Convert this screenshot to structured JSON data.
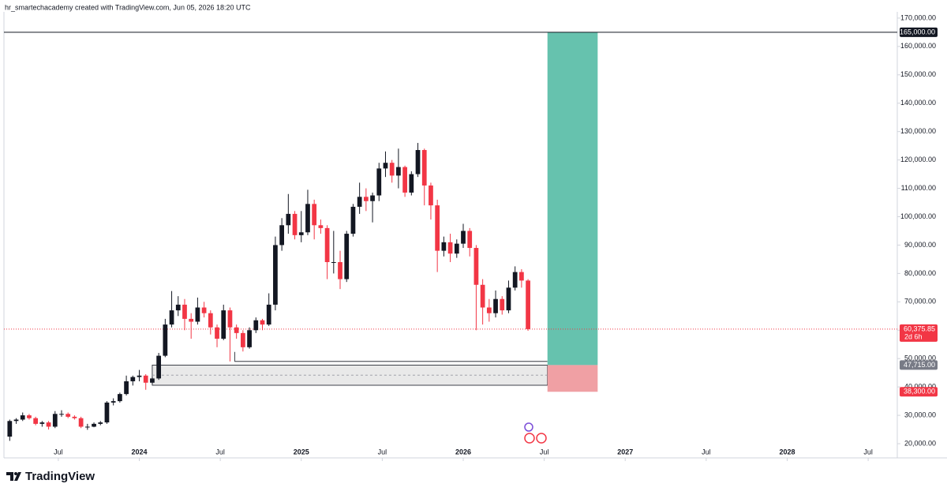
{
  "header": "hr_smartechacademy created with TradingView.com, Jun 05, 2026 18:20 UTC",
  "brand": "TradingView",
  "chart_data": {
    "type": "candlestick",
    "x": [
      2023.2,
      2023.24,
      2023.28,
      2023.32,
      2023.36,
      2023.4,
      2023.44,
      2023.48,
      2023.52,
      2023.56,
      2023.6,
      2023.64,
      2023.68,
      2023.72,
      2023.76,
      2023.8,
      2023.84,
      2023.88,
      2023.92,
      2023.96,
      2024.0,
      2024.04,
      2024.08,
      2024.12,
      2024.16,
      2024.2,
      2024.24,
      2024.28,
      2024.32,
      2024.36,
      2024.4,
      2024.44,
      2024.48,
      2024.52,
      2024.56,
      2024.6,
      2024.64,
      2024.68,
      2024.72,
      2024.76,
      2024.8,
      2024.84,
      2024.88,
      2024.92,
      2024.96,
      2025.0,
      2025.04,
      2025.08,
      2025.12,
      2025.16,
      2025.2,
      2025.24,
      2025.28,
      2025.32,
      2025.36,
      2025.4,
      2025.44,
      2025.48,
      2025.52,
      2025.56,
      2025.6,
      2025.64,
      2025.68,
      2025.72,
      2025.76,
      2025.8,
      2025.84,
      2025.88,
      2025.92,
      2025.96,
      2026.0,
      2026.04,
      2026.08,
      2026.12,
      2026.16,
      2026.2,
      2026.24,
      2026.28,
      2026.32,
      2026.36,
      2026.4
    ],
    "ohlc": [
      [
        22500,
        28500,
        21000,
        28000
      ],
      [
        28000,
        29000,
        27000,
        28500
      ],
      [
        28500,
        31000,
        28000,
        30000
      ],
      [
        30000,
        30500,
        28500,
        29000
      ],
      [
        29000,
        29500,
        26500,
        27000
      ],
      [
        27000,
        28000,
        26000,
        27500
      ],
      [
        27500,
        28000,
        25000,
        26000
      ],
      [
        26000,
        31500,
        25500,
        30500
      ],
      [
        30500,
        31800,
        29500,
        30500
      ],
      [
        30500,
        31000,
        29000,
        29500
      ],
      [
        29500,
        30000,
        28500,
        29000
      ],
      [
        29000,
        29500,
        25500,
        26000
      ],
      [
        26000,
        27000,
        24900,
        26000
      ],
      [
        26000,
        27500,
        25800,
        27000
      ],
      [
        27000,
        28000,
        26500,
        27500
      ],
      [
        27500,
        35000,
        27000,
        34500
      ],
      [
        34500,
        36000,
        33500,
        35000
      ],
      [
        35000,
        38000,
        34500,
        37500
      ],
      [
        37500,
        44000,
        37000,
        42000
      ],
      [
        42000,
        44000,
        40500,
        43500
      ],
      [
        43500,
        46000,
        42000,
        44000
      ],
      [
        44000,
        44500,
        39000,
        41500
      ],
      [
        41500,
        43500,
        41000,
        43000
      ],
      [
        43000,
        52000,
        42500,
        51000
      ],
      [
        51000,
        64000,
        50500,
        62000
      ],
      [
        62000,
        73800,
        61000,
        67000
      ],
      [
        67000,
        72000,
        65000,
        69000
      ],
      [
        69000,
        71000,
        60000,
        64000
      ],
      [
        64000,
        66000,
        57000,
        63000
      ],
      [
        63000,
        71500,
        62000,
        68000
      ],
      [
        68000,
        70000,
        64500,
        66000
      ],
      [
        66000,
        67000,
        58500,
        61000
      ],
      [
        61000,
        62000,
        54000,
        57000
      ],
      [
        57000,
        69000,
        56500,
        67000
      ],
      [
        67000,
        68000,
        49000,
        61000
      ],
      [
        61000,
        62000,
        57000,
        59000
      ],
      [
        59000,
        60000,
        52500,
        54000
      ],
      [
        54000,
        61000,
        53500,
        60000
      ],
      [
        60000,
        64500,
        59000,
        63500
      ],
      [
        63500,
        64000,
        60000,
        62000
      ],
      [
        62000,
        73000,
        61500,
        69000
      ],
      [
        69000,
        93000,
        67000,
        90000
      ],
      [
        90000,
        99500,
        88000,
        97000
      ],
      [
        97000,
        108000,
        94000,
        101000
      ],
      [
        101000,
        102000,
        92000,
        93500
      ],
      [
        93500,
        102000,
        91000,
        94500
      ],
      [
        94500,
        109500,
        93500,
        104500
      ],
      [
        104500,
        106000,
        92000,
        97000
      ],
      [
        97000,
        99000,
        94000,
        96000
      ],
      [
        96000,
        97000,
        78000,
        84000
      ],
      [
        84000,
        95000,
        80000,
        84000
      ],
      [
        84000,
        88000,
        74500,
        78000
      ],
      [
        78000,
        95000,
        77000,
        94000
      ],
      [
        94000,
        104500,
        93000,
        103500
      ],
      [
        103500,
        112000,
        101000,
        107000
      ],
      [
        107000,
        110000,
        102000,
        105500
      ],
      [
        105500,
        108500,
        98000,
        107500
      ],
      [
        107500,
        119000,
        105500,
        117000
      ],
      [
        117000,
        123000,
        114000,
        119000
      ],
      [
        119000,
        120000,
        112000,
        114500
      ],
      [
        114500,
        124000,
        110000,
        117500
      ],
      [
        117500,
        118000,
        107000,
        108500
      ],
      [
        108500,
        116000,
        107500,
        115000
      ],
      [
        115000,
        126000,
        114000,
        123500
      ],
      [
        123500,
        124000,
        104000,
        111000
      ],
      [
        111000,
        112000,
        99000,
        104000
      ],
      [
        104000,
        106000,
        80500,
        88000
      ],
      [
        88000,
        93000,
        86000,
        91000
      ],
      [
        91000,
        94000,
        84000,
        87000
      ],
      [
        87000,
        92000,
        85500,
        90500
      ],
      [
        90500,
        97500,
        89000,
        95000
      ],
      [
        95000,
        96000,
        86000,
        89000
      ],
      [
        89000,
        90000,
        60000,
        76000
      ],
      [
        76000,
        78000,
        62000,
        68000
      ],
      [
        68000,
        71000,
        63000,
        66000
      ],
      [
        66000,
        74000,
        64500,
        71000
      ],
      [
        71000,
        72000,
        65500,
        67000
      ],
      [
        67000,
        77500,
        66000,
        75000
      ],
      [
        75000,
        82500,
        74000,
        80500
      ],
      [
        80500,
        81500,
        75000,
        77500
      ],
      [
        77500,
        78000,
        59800,
        60375.85
      ]
    ],
    "up_color": "#131722",
    "down_color": "#f23645",
    "xlim": [
      2023.14,
      2028.67
    ],
    "xticks": [
      {
        "value": 2023.5,
        "label": "Jul"
      },
      2024,
      {
        "value": 2024.5,
        "label": "Jul"
      },
      2025,
      {
        "value": 2025.5,
        "label": "Jul"
      },
      2026,
      {
        "value": 2026.5,
        "label": "Jul"
      },
      2027,
      {
        "value": 2027.5,
        "label": "Jul"
      },
      2028,
      {
        "value": 2028.5,
        "label": "Jul"
      }
    ],
    "ylim": [
      15000,
      172200
    ],
    "yticks": [
      {
        "value": 20000,
        "label": "20,000.00"
      },
      {
        "value": 30000,
        "label": "30,000.00"
      },
      {
        "value": 40000,
        "label": "40,000.00"
      },
      {
        "value": 50000,
        "label": "50,000.00"
      },
      {
        "value": 60000,
        "label": "60,000.00"
      },
      {
        "value": 70000,
        "label": "70,000.00"
      },
      {
        "value": 80000,
        "label": "80,000.00"
      },
      {
        "value": 90000,
        "label": "90,000.00"
      },
      {
        "value": 100000,
        "label": "100,000.00"
      },
      {
        "value": 110000,
        "label": "110,000.00"
      },
      {
        "value": 120000,
        "label": "120,000.00"
      },
      {
        "value": 130000,
        "label": "130,000.00"
      },
      {
        "value": 140000,
        "label": "140,000.00"
      },
      {
        "value": 150000,
        "label": "150,000.00"
      },
      {
        "value": 160000,
        "label": "160,000.00"
      },
      {
        "value": 170000,
        "label": "170,000.00"
      }
    ],
    "target_line": {
      "value": 165000,
      "label": "165,000.00",
      "color": "#131722"
    },
    "last_price": {
      "value": 60375.85,
      "label": "60,375.85",
      "countdown": "2d 6h",
      "color": "#f23645"
    },
    "zone": {
      "x_start": 2024.08,
      "x_end": 2026.52,
      "top": 47715,
      "bottom": 40600,
      "color": "#e3e3e3"
    },
    "support_line": {
      "x_start": 2024.59,
      "x_end": 2026.52,
      "value": 49000
    },
    "position": {
      "x_start": 2026.52,
      "x_end": 2026.83,
      "entry": 47715,
      "target": 165000,
      "stop": 38300,
      "entry_label": "47,715.00",
      "stop_label": "38,300.00",
      "profit_color": "#66c2ae",
      "loss_color": "#f0a0a4",
      "entry_tag_color": "#787b86",
      "stop_tag_color": "#f23645"
    }
  }
}
